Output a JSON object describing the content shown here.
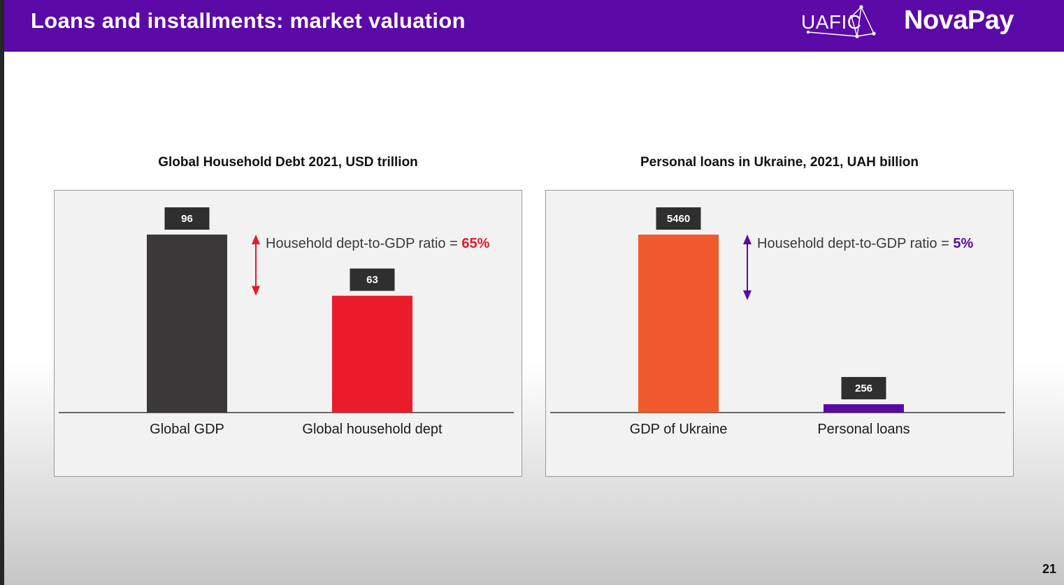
{
  "header": {
    "title": "Loans and installments: market valuation",
    "logo_uafic": "UAFIC",
    "logo_novapay": "NovaPay"
  },
  "page_number": "21",
  "colors": {
    "brand_purple": "#5b0aa7",
    "gdp_dark": "#3b383a",
    "debt_red": "#eb1c2a",
    "gdp_ukraine_orange": "#f05a2c",
    "loans_purple": "#5a0aa3",
    "arrow_red": "#e31b2c",
    "arrow_purple": "#5a0aa3"
  },
  "chart_data": [
    {
      "type": "bar",
      "title": "Global Household Debt 2021, USD trillion",
      "categories": [
        "Global GDP",
        "Global household dept"
      ],
      "values": [
        96,
        63
      ],
      "value_labels": [
        "96",
        "63"
      ],
      "bar_colors": [
        "#3b383a",
        "#eb1c2a"
      ],
      "ylim": [
        0,
        96
      ],
      "annotation": {
        "text": "Household dept-to-GDP ratio = ",
        "value": "65%",
        "color": "#e31b2c"
      }
    },
    {
      "type": "bar",
      "title": "Personal loans in Ukraine, 2021, UAH billion",
      "categories": [
        "GDP of Ukraine",
        "Personal loans"
      ],
      "values": [
        5460,
        256
      ],
      "value_labels": [
        "5460",
        "256"
      ],
      "bar_colors": [
        "#f05a2c",
        "#5a0aa3"
      ],
      "ylim": [
        0,
        5460
      ],
      "annotation": {
        "text": "Household dept-to-GDP ratio = ",
        "value": "5%",
        "color": "#5a0aa3"
      }
    }
  ]
}
